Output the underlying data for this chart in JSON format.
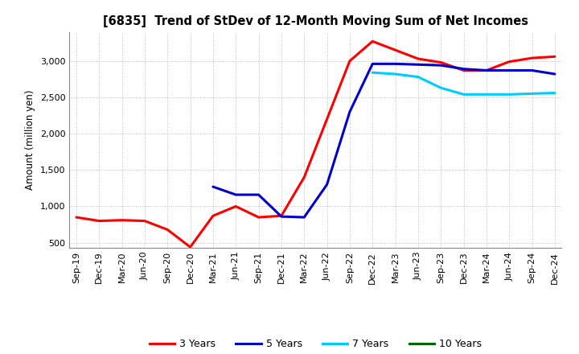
{
  "title": "[6835]  Trend of StDev of 12-Month Moving Sum of Net Incomes",
  "ylabel": "Amount (million yen)",
  "x_labels": [
    "Sep-19",
    "Dec-19",
    "Mar-20",
    "Jun-20",
    "Sep-20",
    "Dec-20",
    "Mar-21",
    "Jun-21",
    "Sep-21",
    "Dec-21",
    "Mar-22",
    "Jun-22",
    "Sep-22",
    "Dec-22",
    "Mar-23",
    "Jun-23",
    "Sep-23",
    "Dec-23",
    "Mar-24",
    "Jun-24",
    "Sep-24",
    "Dec-24"
  ],
  "series": {
    "3 Years": {
      "color": "#FF0000",
      "data": [
        850,
        800,
        810,
        800,
        680,
        440,
        870,
        1000,
        850,
        870,
        1400,
        2200,
        3000,
        3270,
        3150,
        3030,
        2980,
        2870,
        2870,
        2990,
        3040,
        3060
      ]
    },
    "5 Years": {
      "color": "#0000CC",
      "data": [
        null,
        null,
        null,
        null,
        null,
        null,
        1270,
        1160,
        1160,
        860,
        850,
        1300,
        2300,
        2960,
        2960,
        2950,
        2940,
        2890,
        2870,
        2870,
        2870,
        2820
      ]
    },
    "7 Years": {
      "color": "#00CCFF",
      "data": [
        null,
        null,
        null,
        null,
        null,
        null,
        null,
        null,
        null,
        null,
        null,
        null,
        null,
        2840,
        2820,
        2780,
        2630,
        2540,
        2540,
        2540,
        2550,
        2560
      ]
    },
    "10 Years": {
      "color": "#006600",
      "data": [
        null,
        null,
        null,
        null,
        null,
        null,
        null,
        null,
        null,
        null,
        null,
        null,
        null,
        null,
        null,
        null,
        null,
        null,
        null,
        null,
        null,
        null
      ]
    }
  },
  "ylim": [
    430,
    3400
  ],
  "yticks": [
    500,
    1000,
    1500,
    2000,
    2500,
    3000
  ],
  "legend_labels": [
    "3 Years",
    "5 Years",
    "7 Years",
    "10 Years"
  ],
  "legend_colors": [
    "#FF0000",
    "#0000CC",
    "#00CCFF",
    "#006600"
  ],
  "background_color": "#FFFFFF",
  "grid_color": "#BBBBBB"
}
